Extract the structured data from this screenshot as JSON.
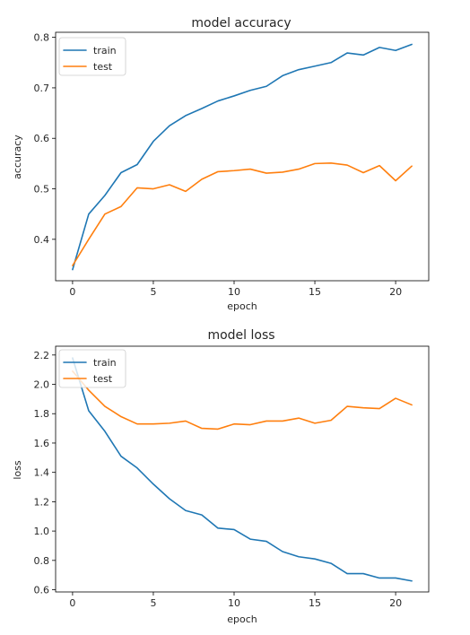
{
  "colors": {
    "train": "#1f77b4",
    "test": "#ff7f0e"
  },
  "chart_data": [
    {
      "type": "line",
      "title": "model accuracy",
      "xlabel": "epoch",
      "ylabel": "accuracy",
      "xlim": [
        -1.05,
        22.05
      ],
      "ylim": [
        0.318,
        0.81
      ],
      "xticks": [
        0,
        5,
        10,
        15,
        20
      ],
      "yticks": [
        0.4,
        0.5,
        0.6,
        0.7,
        0.8
      ],
      "legend": "upper left",
      "x": [
        0,
        1,
        2,
        3,
        4,
        5,
        6,
        7,
        8,
        9,
        10,
        11,
        12,
        13,
        14,
        15,
        16,
        17,
        18,
        19,
        20,
        21
      ],
      "series": [
        {
          "name": "train",
          "color": "#1f77b4",
          "values": [
            0.34,
            0.45,
            0.487,
            0.532,
            0.548,
            0.594,
            0.625,
            0.645,
            0.659,
            0.674,
            0.684,
            0.695,
            0.703,
            0.724,
            0.736,
            0.743,
            0.75,
            0.769,
            0.765,
            0.78,
            0.774,
            0.786
          ]
        },
        {
          "name": "test",
          "color": "#ff7f0e",
          "values": [
            0.348,
            0.4,
            0.45,
            0.465,
            0.502,
            0.5,
            0.508,
            0.495,
            0.519,
            0.534,
            0.536,
            0.539,
            0.531,
            0.533,
            0.539,
            0.55,
            0.551,
            0.547,
            0.532,
            0.546,
            0.516,
            0.545
          ]
        }
      ]
    },
    {
      "type": "line",
      "title": "model loss",
      "xlabel": "epoch",
      "ylabel": "loss",
      "xlim": [
        -1.05,
        22.05
      ],
      "ylim": [
        0.585,
        2.26
      ],
      "xticks": [
        0,
        5,
        10,
        15,
        20
      ],
      "yticks": [
        0.6,
        0.8,
        1.0,
        1.2,
        1.4,
        1.6,
        1.8,
        2.0,
        2.2
      ],
      "legend": "upper left",
      "x": [
        0,
        1,
        2,
        3,
        4,
        5,
        6,
        7,
        8,
        9,
        10,
        11,
        12,
        13,
        14,
        15,
        16,
        17,
        18,
        19,
        20,
        21
      ],
      "series": [
        {
          "name": "train",
          "color": "#1f77b4",
          "values": [
            2.18,
            1.82,
            1.68,
            1.51,
            1.43,
            1.32,
            1.22,
            1.14,
            1.11,
            1.02,
            1.01,
            0.945,
            0.93,
            0.86,
            0.825,
            0.81,
            0.78,
            0.71,
            0.71,
            0.68,
            0.68,
            0.66
          ]
        },
        {
          "name": "test",
          "color": "#ff7f0e",
          "values": [
            2.09,
            1.96,
            1.85,
            1.78,
            1.73,
            1.73,
            1.735,
            1.75,
            1.7,
            1.695,
            1.73,
            1.725,
            1.75,
            1.75,
            1.77,
            1.735,
            1.755,
            1.85,
            1.84,
            1.835,
            1.905,
            1.86
          ]
        }
      ]
    }
  ]
}
